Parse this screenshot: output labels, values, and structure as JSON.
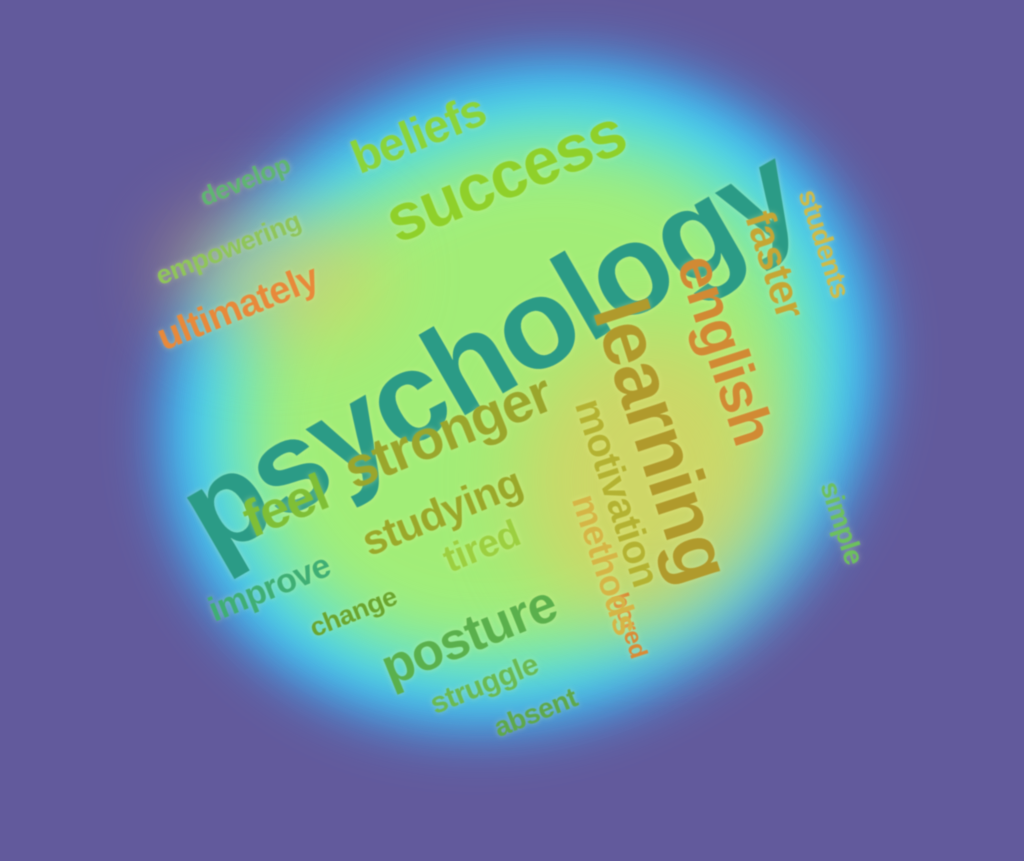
{
  "background_color": "#625a9c",
  "words": [
    {
      "text": "psychology"
    },
    {
      "text": "success"
    },
    {
      "text": "beliefs"
    },
    {
      "text": "develop"
    },
    {
      "text": "empowering"
    },
    {
      "text": "ultimately"
    },
    {
      "text": "feel"
    },
    {
      "text": "stronger"
    },
    {
      "text": "improve"
    },
    {
      "text": "studying"
    },
    {
      "text": "change"
    },
    {
      "text": "tired"
    },
    {
      "text": "posture"
    },
    {
      "text": "struggle"
    },
    {
      "text": "absent"
    },
    {
      "text": "bored"
    },
    {
      "text": "methods"
    },
    {
      "text": "motivation"
    },
    {
      "text": "learning"
    },
    {
      "text": "english"
    },
    {
      "text": "faster"
    },
    {
      "text": "students"
    },
    {
      "text": "simple"
    }
  ]
}
